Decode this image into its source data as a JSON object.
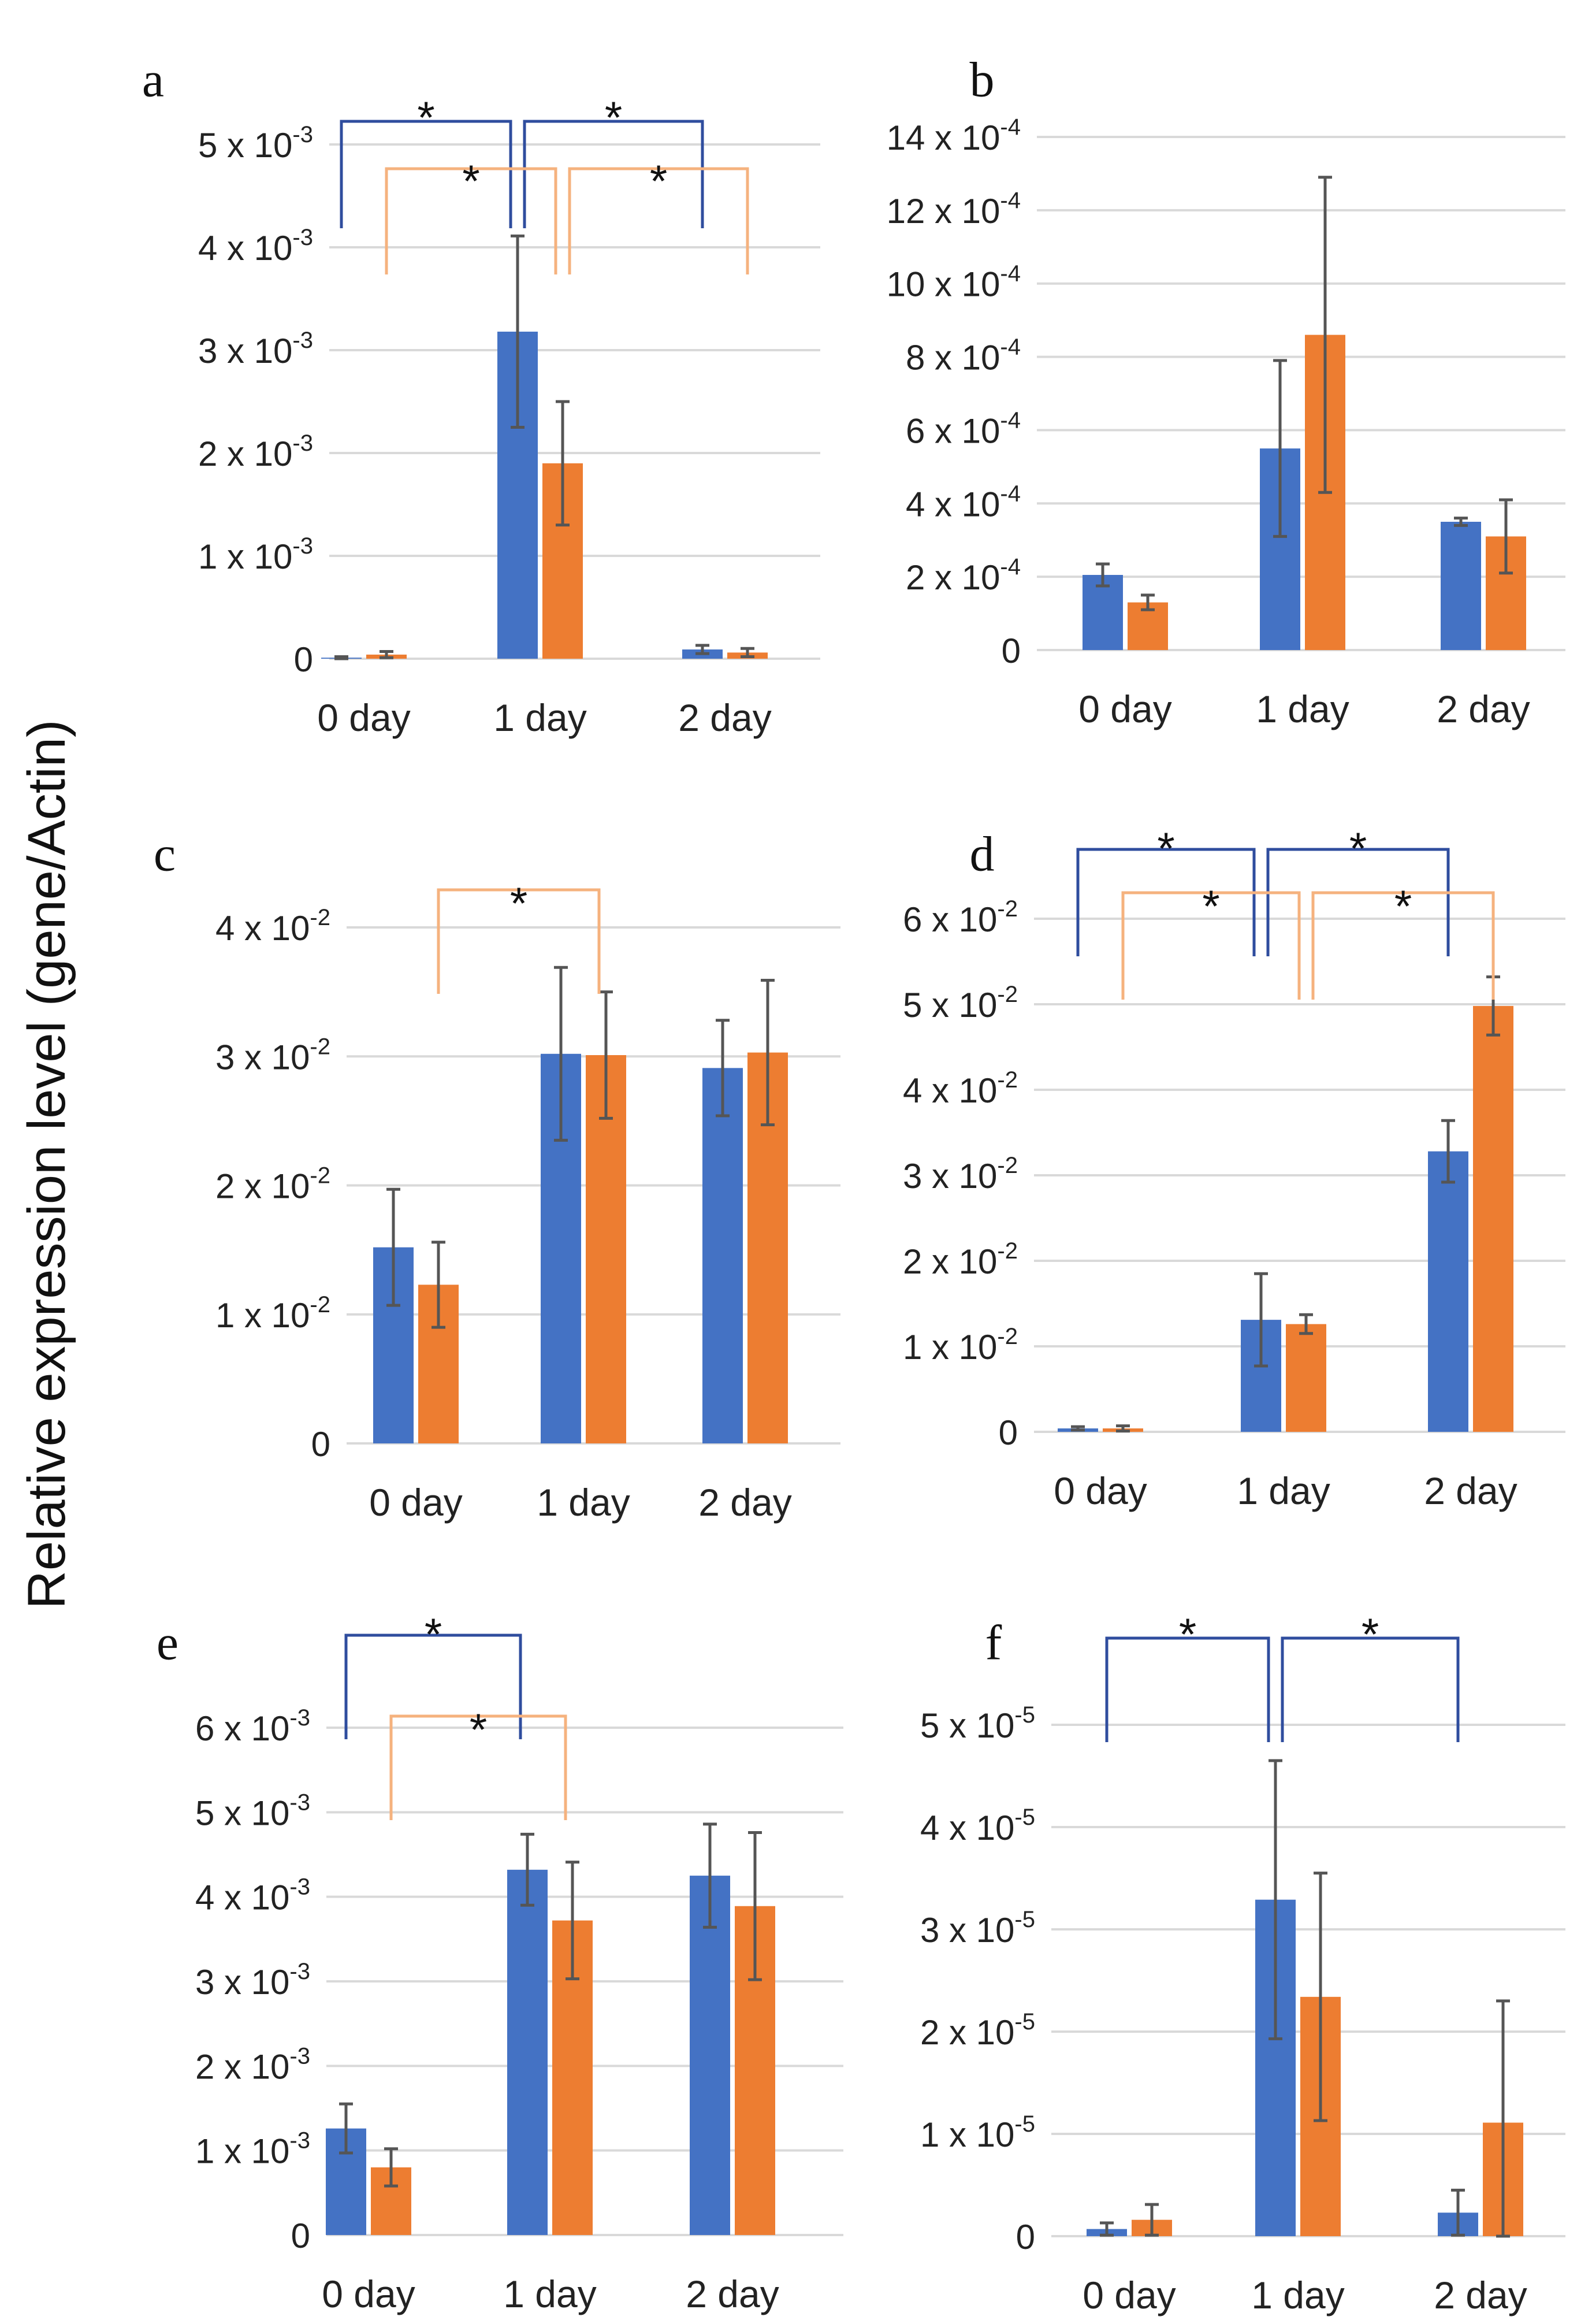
{
  "figure": {
    "y_axis_label": "Relative expression level (gene/Actin)",
    "colors": {
      "blue": "#4472C4",
      "orange": "#ED7D31",
      "blue_bracket": "#2F4D9E",
      "orange_bracket": "#F5B27E",
      "grid": "#D9D9D9",
      "error": "#555555"
    }
  },
  "chart_data": [
    {
      "id": "a",
      "label": "a",
      "type": "bar",
      "categories": [
        "0 day",
        "1 day",
        "2 day"
      ],
      "series": [
        {
          "name": "blue",
          "values": [
            1e-05,
            0.00318,
            9e-05
          ],
          "errors": [
            1e-05,
            0.00093,
            4e-05
          ]
        },
        {
          "name": "orange",
          "values": [
            4e-05,
            0.0019,
            6e-05
          ],
          "errors": [
            3e-05,
            0.0006,
            4e-05
          ]
        }
      ],
      "ylim": [
        0,
        0.005
      ],
      "yticks": [
        {
          "value": 0,
          "mant": "0",
          "exp": ""
        },
        {
          "value": 0.001,
          "mant": "1 x 10",
          "exp": "-3"
        },
        {
          "value": 0.002,
          "mant": "2 x 10",
          "exp": "-3"
        },
        {
          "value": 0.003,
          "mant": "3 x 10",
          "exp": "-3"
        },
        {
          "value": 0.004,
          "mant": "4 x 10",
          "exp": "-3"
        },
        {
          "value": 0.005,
          "mant": "5 x 10",
          "exp": "-3"
        }
      ],
      "significance": [
        {
          "color": "blue",
          "from": 0,
          "to": 1,
          "label": "*"
        },
        {
          "color": "blue",
          "from": 1,
          "to": 2,
          "label": "*"
        },
        {
          "color": "orange",
          "from": 0,
          "to": 1,
          "label": "*"
        },
        {
          "color": "orange",
          "from": 1,
          "to": 2,
          "label": "*"
        }
      ]
    },
    {
      "id": "b",
      "label": "b",
      "type": "bar",
      "categories": [
        "0 day",
        "1 day",
        "2 day"
      ],
      "series": [
        {
          "name": "blue",
          "values": [
            0.000205,
            0.00055,
            0.00035
          ],
          "errors": [
            3e-05,
            0.00024,
            1e-05
          ]
        },
        {
          "name": "orange",
          "values": [
            0.00013,
            0.00086,
            0.00031
          ],
          "errors": [
            2e-05,
            0.00043,
            0.0001
          ]
        }
      ],
      "ylim": [
        0,
        0.0014
      ],
      "yticks": [
        {
          "value": 0,
          "mant": "0",
          "exp": ""
        },
        {
          "value": 0.0002,
          "mant": "2 x 10",
          "exp": "-4"
        },
        {
          "value": 0.0004,
          "mant": "4 x 10",
          "exp": "-4"
        },
        {
          "value": 0.0006,
          "mant": "6 x 10",
          "exp": "-4"
        },
        {
          "value": 0.0008,
          "mant": "8 x 10",
          "exp": "-4"
        },
        {
          "value": 0.001,
          "mant": "10 x 10",
          "exp": "-4"
        },
        {
          "value": 0.0012,
          "mant": "12 x 10",
          "exp": "-4"
        },
        {
          "value": 0.0014,
          "mant": "14 x 10",
          "exp": "-4"
        }
      ],
      "significance": []
    },
    {
      "id": "c",
      "label": "c",
      "type": "bar",
      "categories": [
        "0 day",
        "1 day",
        "2 day"
      ],
      "series": [
        {
          "name": "blue",
          "values": [
            0.0152,
            0.0302,
            0.0291
          ],
          "errors": [
            0.0045,
            0.0067,
            0.0037
          ]
        },
        {
          "name": "orange",
          "values": [
            0.0123,
            0.0301,
            0.0303
          ],
          "errors": [
            0.0033,
            0.0049,
            0.0056
          ]
        }
      ],
      "ylim": [
        0,
        0.04
      ],
      "yticks": [
        {
          "value": 0,
          "mant": "0",
          "exp": ""
        },
        {
          "value": 0.01,
          "mant": "1 x 10",
          "exp": "-2"
        },
        {
          "value": 0.02,
          "mant": "2 x 10",
          "exp": "-2"
        },
        {
          "value": 0.03,
          "mant": "3 x 10",
          "exp": "-2"
        },
        {
          "value": 0.04,
          "mant": "4 x 10",
          "exp": "-2"
        }
      ],
      "significance": [
        {
          "color": "orange",
          "from": 0,
          "to": 1,
          "label": "*"
        }
      ]
    },
    {
      "id": "d",
      "label": "d",
      "type": "bar",
      "categories": [
        "0 day",
        "1 day",
        "2 day"
      ],
      "series": [
        {
          "name": "blue",
          "values": [
            0.0004,
            0.0131,
            0.0328
          ],
          "errors": [
            0.0002,
            0.0054,
            0.0036
          ]
        },
        {
          "name": "orange",
          "values": [
            0.0004,
            0.0126,
            0.0498
          ],
          "errors": [
            0.0003,
            0.0011,
            0.0034
          ]
        }
      ],
      "ylim": [
        0,
        0.06
      ],
      "yticks": [
        {
          "value": 0,
          "mant": "0",
          "exp": ""
        },
        {
          "value": 0.01,
          "mant": "1 x 10",
          "exp": "-2"
        },
        {
          "value": 0.02,
          "mant": "2 x 10",
          "exp": "-2"
        },
        {
          "value": 0.03,
          "mant": "3 x 10",
          "exp": "-2"
        },
        {
          "value": 0.04,
          "mant": "4 x 10",
          "exp": "-2"
        },
        {
          "value": 0.05,
          "mant": "5 x 10",
          "exp": "-2"
        },
        {
          "value": 0.06,
          "mant": "6 x 10",
          "exp": "-2"
        }
      ],
      "significance": [
        {
          "color": "blue",
          "from": 0,
          "to": 1,
          "label": "*"
        },
        {
          "color": "blue",
          "from": 1,
          "to": 2,
          "label": "*"
        },
        {
          "color": "orange",
          "from": 0,
          "to": 1,
          "label": "*"
        },
        {
          "color": "orange",
          "from": 1,
          "to": 2,
          "label": "*"
        }
      ]
    },
    {
      "id": "e",
      "label": "e",
      "type": "bar",
      "categories": [
        "0 day",
        "1 day",
        "2 day"
      ],
      "series": [
        {
          "name": "blue",
          "values": [
            0.00126,
            0.00432,
            0.00425
          ],
          "errors": [
            0.00029,
            0.00042,
            0.00061
          ]
        },
        {
          "name": "orange",
          "values": [
            0.0008,
            0.00372,
            0.00389
          ],
          "errors": [
            0.00022,
            0.00069,
            0.00087
          ]
        }
      ],
      "ylim": [
        0,
        0.006
      ],
      "yticks": [
        {
          "value": 0,
          "mant": "0",
          "exp": ""
        },
        {
          "value": 0.001,
          "mant": "1 x 10",
          "exp": "-3"
        },
        {
          "value": 0.002,
          "mant": "2 x 10",
          "exp": "-3"
        },
        {
          "value": 0.003,
          "mant": "3 x 10",
          "exp": "-3"
        },
        {
          "value": 0.004,
          "mant": "4 x 10",
          "exp": "-3"
        },
        {
          "value": 0.005,
          "mant": "5 x 10",
          "exp": "-3"
        },
        {
          "value": 0.006,
          "mant": "6 x 10",
          "exp": "-3"
        }
      ],
      "significance": [
        {
          "color": "blue",
          "from": 0,
          "to": 1,
          "label": "*"
        },
        {
          "color": "orange",
          "from": 0,
          "to": 1,
          "label": "*"
        }
      ]
    },
    {
      "id": "f",
      "label": "f",
      "type": "bar",
      "categories": [
        "0 day",
        "1 day",
        "2 day"
      ],
      "series": [
        {
          "name": "blue",
          "values": [
            7e-07,
            3.29e-05,
            2.3e-06
          ],
          "errors": [
            6e-07,
            1.36e-05,
            2.2e-06
          ]
        },
        {
          "name": "orange",
          "values": [
            1.6e-06,
            2.34e-05,
            1.11e-05
          ],
          "errors": [
            1.5e-06,
            1.21e-05,
            1.19e-05
          ]
        }
      ],
      "ylim": [
        0,
        5e-05
      ],
      "yticks": [
        {
          "value": 0,
          "mant": "0",
          "exp": ""
        },
        {
          "value": 1e-05,
          "mant": "1 x 10",
          "exp": "-5"
        },
        {
          "value": 2e-05,
          "mant": "2 x 10",
          "exp": "-5"
        },
        {
          "value": 3e-05,
          "mant": "3 x 10",
          "exp": "-5"
        },
        {
          "value": 4e-05,
          "mant": "4 x 10",
          "exp": "-5"
        },
        {
          "value": 5e-05,
          "mant": "5 x 10",
          "exp": "-5"
        }
      ],
      "significance": [
        {
          "color": "blue",
          "from": 0,
          "to": 1,
          "label": "*"
        },
        {
          "color": "blue",
          "from": 1,
          "to": 2,
          "label": "*"
        }
      ]
    }
  ]
}
